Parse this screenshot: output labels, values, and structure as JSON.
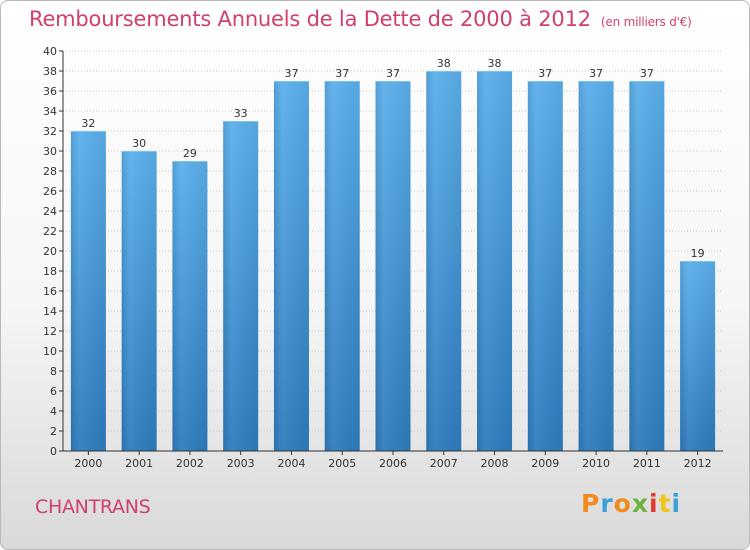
{
  "page": {
    "title": "Remboursements Annuels de la Dette de 2000 à 2012",
    "unit": "(en milliers d'€)",
    "commune": "CHANTRANS",
    "logo": {
      "text": "Proxiti"
    }
  },
  "colors": {
    "bar_top": "#5aaeea",
    "bar_bottom": "#2d7bbd",
    "title": "#d0406a",
    "axis": "#333333",
    "grid": "#c8c8c8"
  },
  "chart_data": {
    "type": "bar",
    "categories": [
      "2000",
      "2001",
      "2002",
      "2003",
      "2004",
      "2005",
      "2006",
      "2007",
      "2008",
      "2009",
      "2010",
      "2011",
      "2012"
    ],
    "values": [
      32,
      30,
      29,
      33,
      37,
      37,
      37,
      38,
      38,
      37,
      37,
      37,
      19
    ],
    "ylim": [
      0,
      40
    ],
    "yticks": [
      0,
      2,
      4,
      6,
      8,
      10,
      12,
      14,
      16,
      18,
      20,
      22,
      24,
      26,
      28,
      30,
      32,
      34,
      36,
      38,
      40
    ],
    "grid": "horizontal dotted",
    "data_labels": true
  }
}
